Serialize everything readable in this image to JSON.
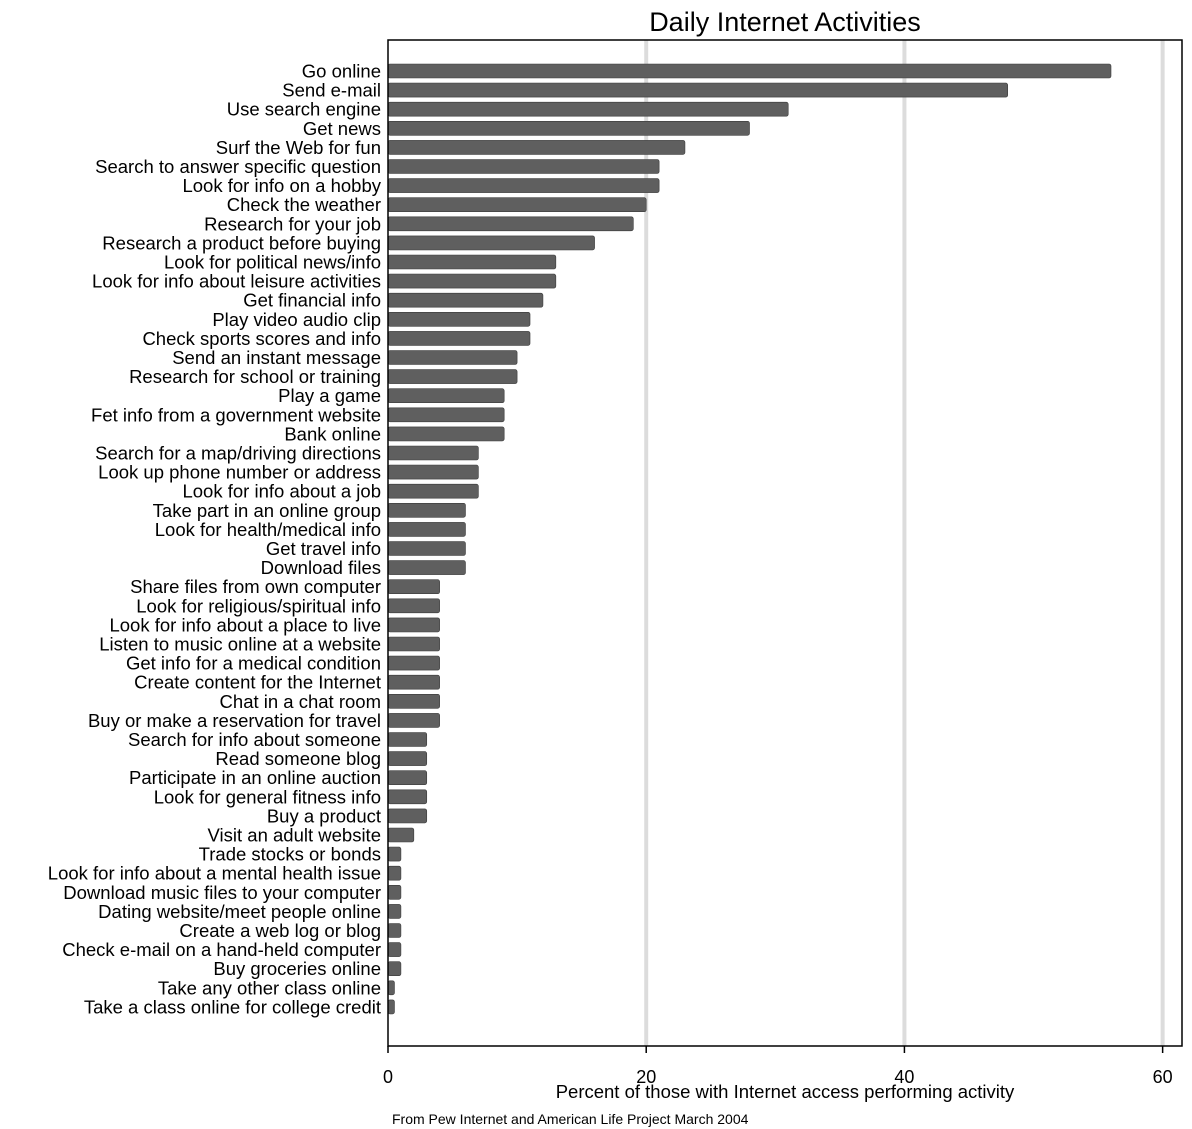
{
  "chart_data": {
    "type": "bar",
    "orientation": "horizontal",
    "title": "Daily Internet Activities",
    "xlabel": "Percent of those with Internet access performing activity",
    "ylabel": "",
    "note": "From Pew Internet and American Life Project March 2004",
    "xlim": [
      0,
      61.5
    ],
    "xticks": [
      0,
      20,
      40,
      60
    ],
    "grid": "vertical lines at major ticks",
    "bar_color": "#5f5f5f",
    "grid_color": "#dcdcdc",
    "categories": [
      "Go online",
      "Send e-mail",
      "Use search engine",
      "Get news",
      "Surf the Web for fun",
      "Search to answer specific question",
      "Look for info on a hobby",
      "Check the weather",
      "Research for your job",
      "Research a product before buying",
      "Look for political news/info",
      "Look for info about leisure activities",
      "Get financial info",
      "Play video audio clip",
      "Check sports scores and info",
      "Send an instant message",
      "Research for school or training",
      "Play a game",
      "Fet info from a government website",
      "Bank online",
      "Search for a map/driving directions",
      "Look up phone number or address",
      "Look for info about a job",
      "Take part in an online group",
      "Look for health/medical info",
      "Get travel info",
      "Download files",
      "Share files from own computer",
      "Look for religious/spiritual info",
      "Look for info about a place to live",
      "Listen to music online at a website",
      "Get info for a  medical condition",
      "Create content for the Internet",
      "Chat in a chat room",
      "Buy or make a reservation for travel",
      "Search for info about someone",
      "Read someone blog",
      "Participate in an online auction",
      "Look for general fitness info",
      "Buy a product",
      "Visit an adult website",
      "Trade stocks or bonds",
      "Look for info about a mental health issue",
      "Download music files to your computer",
      "Dating website/meet people online",
      "Create a web log or blog",
      "Check e-mail on a hand-held computer",
      "Buy groceries online",
      "Take any other class online",
      "Take a class online for college credit"
    ],
    "values": [
      56,
      48,
      31,
      28,
      23,
      21,
      21,
      20,
      19,
      16,
      13,
      13,
      12,
      11,
      11,
      10,
      10,
      9,
      9,
      9,
      7,
      7,
      7,
      6,
      6,
      6,
      6,
      4,
      4,
      4,
      4,
      4,
      4,
      4,
      4,
      3,
      3,
      3,
      3,
      3,
      2,
      1,
      1,
      1,
      1,
      1,
      1,
      1,
      0.5,
      0.5
    ]
  }
}
